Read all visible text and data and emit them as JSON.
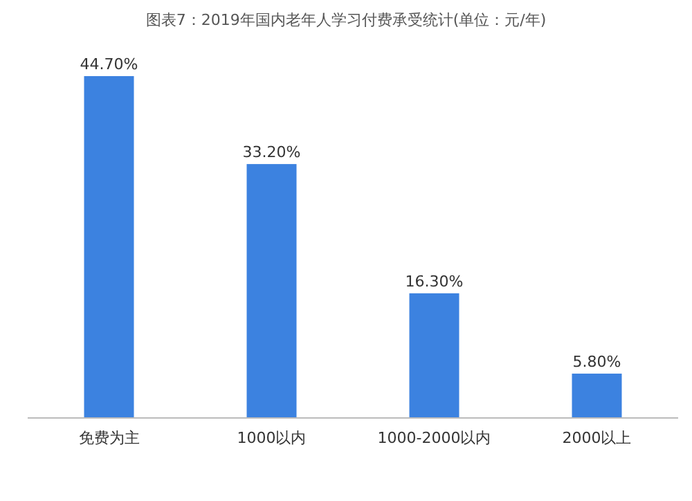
{
  "chart_data": {
    "type": "bar",
    "title": "图表7：2019年国内老年人学习付费承受统计(单位：元/年)",
    "categories": [
      "免费为主",
      "1000以内",
      "1000-2000以内",
      "2000以上"
    ],
    "values": [
      44.7,
      33.2,
      16.3,
      5.8
    ],
    "value_labels": [
      "44.70%",
      "33.20%",
      "16.30%",
      "5.80%"
    ],
    "color": "#3c82e0"
  }
}
